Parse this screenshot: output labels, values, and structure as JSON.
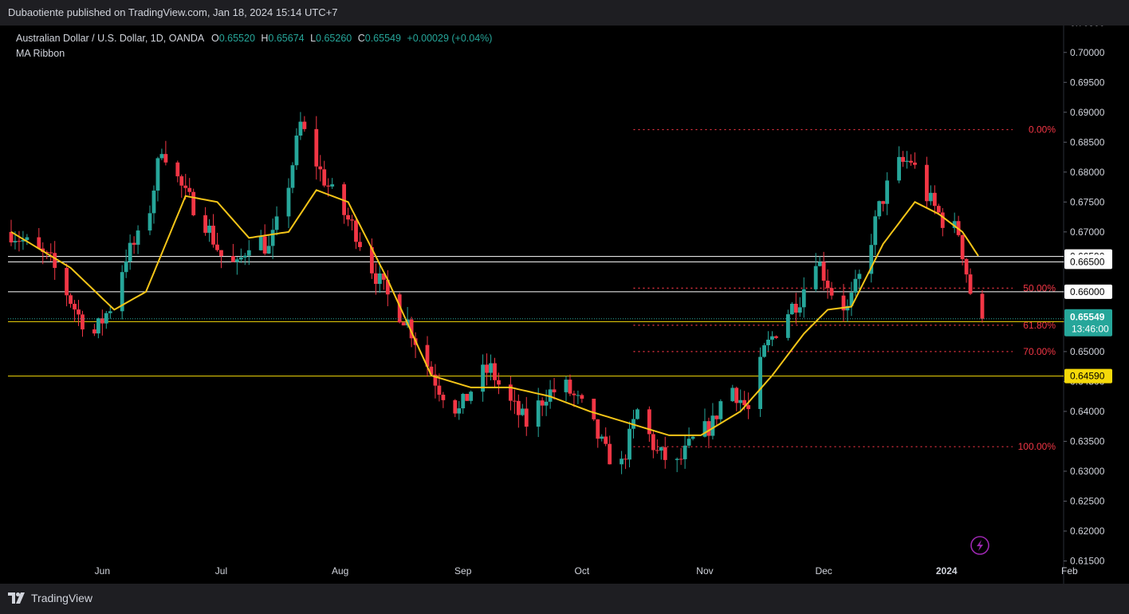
{
  "header": {
    "publisher_text": "Dubaotiente published on TradingView.com, Jan 18, 2024 15:14 UTC+7"
  },
  "legend": {
    "symbol": "Australian Dollar / U.S. Dollar, 1D, OANDA",
    "o_label": "O",
    "o_value": "0.65520",
    "h_label": "H",
    "h_value": "0.65674",
    "l_label": "L",
    "l_value": "0.65260",
    "c_label": "C",
    "c_value": "0.65549",
    "change": "+0.00029 (+0.04%)",
    "indicator": "MA Ribbon"
  },
  "footer": {
    "brand": "TradingView"
  },
  "colors": {
    "up": "#26a69a",
    "down": "#f23645",
    "ma": "#f5c518",
    "fib": "#f23645",
    "hline_white": "#ffffff",
    "hline_yellow": "#f5d90a",
    "bg": "#000000"
  },
  "chart_data": {
    "type": "candlestick",
    "y_axis": {
      "min": 0.612,
      "max": 0.7045,
      "position": "right",
      "ticks": [
        "0.70500",
        "0.70000",
        "0.69500",
        "0.69000",
        "0.68500",
        "0.68000",
        "0.67500",
        "0.67000",
        "0.66500",
        "0.66000",
        "0.65500",
        "0.65000",
        "0.64500",
        "0.64000",
        "0.63500",
        "0.63000",
        "0.62500",
        "0.62000",
        "0.61500"
      ]
    },
    "x_axis": {
      "ticks": [
        "Jun",
        "Jul",
        "Aug",
        "Sep",
        "Oct",
        "Nov",
        "Dec",
        "2024",
        "Feb"
      ]
    },
    "price_series": [
      [
        0,
        0.67
      ],
      [
        10,
        0.665
      ],
      [
        17,
        0.656
      ],
      [
        21,
        0.653
      ],
      [
        25,
        0.6575
      ],
      [
        29,
        0.666
      ],
      [
        34,
        0.6705
      ],
      [
        38,
        0.6845
      ],
      [
        44,
        0.676
      ],
      [
        48,
        0.673
      ],
      [
        53,
        0.666
      ],
      [
        57,
        0.664
      ],
      [
        61,
        0.67
      ],
      [
        65,
        0.667
      ],
      [
        69,
        0.675
      ],
      [
        73,
        0.688
      ],
      [
        78,
        0.68
      ],
      [
        83,
        0.674
      ],
      [
        87,
        0.67
      ],
      [
        91,
        0.664
      ],
      [
        96,
        0.658
      ],
      [
        100,
        0.655
      ],
      [
        104,
        0.649
      ],
      [
        108,
        0.644
      ],
      [
        113,
        0.64
      ],
      [
        118,
        0.646
      ],
      [
        121,
        0.647
      ],
      [
        125,
        0.642
      ],
      [
        130,
        0.638
      ],
      [
        135,
        0.643
      ],
      [
        140,
        0.644
      ],
      [
        145,
        0.64
      ],
      [
        150,
        0.633
      ],
      [
        154,
        0.631
      ],
      [
        158,
        0.64
      ],
      [
        163,
        0.633
      ],
      [
        168,
        0.631
      ],
      [
        172,
        0.635
      ],
      [
        177,
        0.638
      ],
      [
        181,
        0.645
      ],
      [
        186,
        0.64
      ],
      [
        190,
        0.65
      ],
      [
        195,
        0.656
      ],
      [
        199,
        0.659
      ],
      [
        203,
        0.666
      ],
      [
        207,
        0.66
      ],
      [
        211,
        0.657
      ],
      [
        215,
        0.664
      ],
      [
        219,
        0.674
      ],
      [
        223,
        0.681
      ],
      [
        227,
        0.682
      ],
      [
        231,
        0.676
      ],
      [
        235,
        0.672
      ],
      [
        239,
        0.67
      ],
      [
        242,
        0.66
      ],
      [
        244,
        0.656
      ],
      [
        245,
        0.6555
      ]
    ],
    "ma_series": [
      [
        0,
        0.67
      ],
      [
        15,
        0.664
      ],
      [
        26,
        0.657
      ],
      [
        34,
        0.66
      ],
      [
        44,
        0.676
      ],
      [
        52,
        0.675
      ],
      [
        60,
        0.669
      ],
      [
        70,
        0.67
      ],
      [
        77,
        0.677
      ],
      [
        85,
        0.675
      ],
      [
        95,
        0.662
      ],
      [
        106,
        0.646
      ],
      [
        116,
        0.644
      ],
      [
        126,
        0.644
      ],
      [
        136,
        0.6425
      ],
      [
        146,
        0.64
      ],
      [
        156,
        0.638
      ],
      [
        166,
        0.636
      ],
      [
        174,
        0.636
      ],
      [
        184,
        0.64
      ],
      [
        192,
        0.646
      ],
      [
        200,
        0.653
      ],
      [
        206,
        0.657
      ],
      [
        212,
        0.6575
      ],
      [
        220,
        0.668
      ],
      [
        228,
        0.675
      ],
      [
        234,
        0.673
      ],
      [
        240,
        0.67
      ],
      [
        244,
        0.666
      ]
    ],
    "fibonacci": [
      {
        "label": "0.00%",
        "price": 0.6871
      },
      {
        "label": "50.00%",
        "price": 0.6606
      },
      {
        "label": "61.80%",
        "price": 0.6544
      },
      {
        "label": "70.00%",
        "price": 0.65
      },
      {
        "label": "100.00%",
        "price": 0.6341
      }
    ],
    "horizontal_levels": [
      {
        "price": 0.6659,
        "label": "0.66590",
        "style": "white"
      },
      {
        "price": 0.665,
        "label": "0.66500",
        "style": "white"
      },
      {
        "price": 0.66,
        "label": "0.66000",
        "style": "white"
      },
      {
        "price": 0.655,
        "label": "0.65500",
        "style": "yellow"
      },
      {
        "price": 0.6459,
        "label": "0.64590",
        "style": "yellow"
      }
    ],
    "last_price": {
      "price": 0.65549,
      "label": "0.65549",
      "countdown": "13:46:00"
    }
  }
}
